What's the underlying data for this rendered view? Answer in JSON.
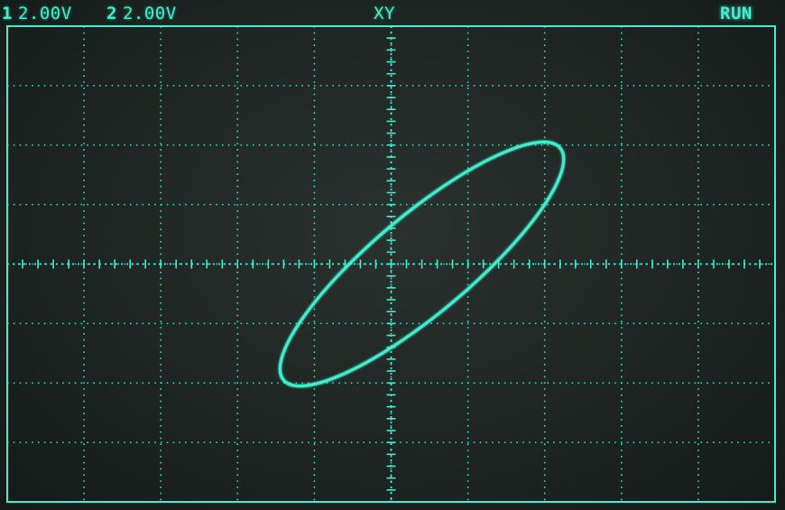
{
  "header": {
    "ch1": {
      "number": "1",
      "scale": "2.00V"
    },
    "ch2": {
      "number": "2",
      "scale": "2.00V"
    },
    "mode": "XY",
    "status": "RUN"
  },
  "display": {
    "trace_color": "#3ef0cf",
    "grid_color": "#3ef0cf",
    "background_color": "#1e2522",
    "divisions_x": 10,
    "divisions_y": 8,
    "minor_ticks_per_division": 5
  },
  "xy_trace": {
    "shape": "ellipse",
    "center_div": [
      0.4,
      0.0
    ],
    "semi_major_div": 2.65,
    "semi_minor_div": 0.72,
    "tilt_deg": 40
  }
}
